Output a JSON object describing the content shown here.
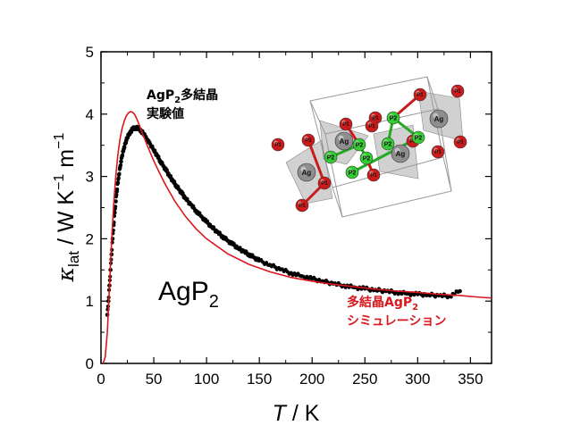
{
  "chart_data": {
    "type": "line",
    "xlabel_var": "T",
    "xlabel_unit": "K",
    "ylabel_var": "κ",
    "ylabel_sub": "lat",
    "ylabel_unit_main": "W K",
    "ylabel_unit_exp1": "−1",
    "ylabel_unit_m": "m",
    "ylabel_unit_exp2": "−1",
    "xlim": [
      0,
      370
    ],
    "ylim": [
      0,
      5
    ],
    "xticks": [
      "0",
      "50",
      "100",
      "150",
      "200",
      "250",
      "300",
      "350"
    ],
    "yticks": [
      "0",
      "1",
      "2",
      "3",
      "4",
      "5"
    ],
    "grid": false,
    "compound_main": "AgP",
    "compound_sub": "2",
    "annotation_experiment": {
      "line1_main": "AgP",
      "line1_sub": "2",
      "line1_tail": "多結晶",
      "line2": "実験値"
    },
    "annotation_simulation": {
      "line1_main": "多結晶AgP",
      "line1_sub": "2",
      "line2": "シミュレーション"
    },
    "series": [
      {
        "kind": "experiment",
        "marker": "dot",
        "color": "#000000",
        "x": [
          6,
          7,
          8,
          9,
          10,
          11,
          12,
          13,
          14,
          15,
          16,
          17,
          18,
          19,
          20,
          21,
          22,
          23,
          24,
          25,
          26,
          27,
          28,
          29,
          30,
          31,
          32,
          33,
          34,
          35,
          36,
          37,
          38,
          39,
          40,
          42,
          44,
          46,
          48,
          50,
          53,
          56,
          59,
          62,
          65,
          68,
          71,
          74,
          77,
          80,
          85,
          90,
          95,
          100,
          105,
          110,
          115,
          120,
          125,
          130,
          135,
          140,
          145,
          150,
          160,
          170,
          180,
          190,
          200,
          210,
          220,
          230,
          240,
          250,
          260,
          270,
          280,
          290,
          300,
          310,
          320,
          330,
          340
        ],
        "y": [
          0.78,
          1.0,
          1.25,
          1.5,
          1.75,
          2.0,
          2.22,
          2.42,
          2.6,
          2.76,
          2.9,
          3.03,
          3.14,
          3.24,
          3.33,
          3.4,
          3.47,
          3.53,
          3.58,
          3.62,
          3.66,
          3.69,
          3.72,
          3.74,
          3.76,
          3.77,
          3.78,
          3.78,
          3.78,
          3.77,
          3.76,
          3.75,
          3.73,
          3.71,
          3.69,
          3.64,
          3.59,
          3.54,
          3.48,
          3.42,
          3.34,
          3.25,
          3.17,
          3.09,
          3.01,
          2.93,
          2.86,
          2.79,
          2.72,
          2.65,
          2.55,
          2.45,
          2.36,
          2.27,
          2.19,
          2.11,
          2.04,
          1.97,
          1.91,
          1.85,
          1.8,
          1.75,
          1.7,
          1.65,
          1.58,
          1.51,
          1.45,
          1.4,
          1.36,
          1.32,
          1.28,
          1.25,
          1.22,
          1.2,
          1.18,
          1.16,
          1.14,
          1.12,
          1.11,
          1.1,
          1.09,
          1.08,
          1.16
        ]
      },
      {
        "kind": "simulation",
        "marker": "line",
        "color": "#d8181e",
        "x": [
          2,
          4,
          6,
          8,
          10,
          12,
          14,
          16,
          18,
          20,
          22,
          24,
          26,
          28,
          30,
          32,
          34,
          36,
          38,
          40,
          45,
          50,
          55,
          60,
          70,
          80,
          90,
          100,
          120,
          140,
          160,
          180,
          200,
          220,
          240,
          260,
          280,
          300,
          320,
          340,
          360,
          370
        ],
        "y": [
          0.0,
          0.1,
          0.5,
          1.2,
          1.95,
          2.55,
          3.0,
          3.35,
          3.6,
          3.77,
          3.89,
          3.97,
          4.02,
          4.04,
          4.03,
          3.99,
          3.92,
          3.84,
          3.75,
          3.66,
          3.45,
          3.25,
          3.07,
          2.9,
          2.6,
          2.36,
          2.16,
          2.0,
          1.76,
          1.59,
          1.47,
          1.38,
          1.32,
          1.27,
          1.23,
          1.19,
          1.16,
          1.14,
          1.11,
          1.09,
          1.06,
          1.05
        ]
      }
    ]
  },
  "inset": {
    "atom_labels_ag": [
      "Ag",
      "Ag",
      "Ag",
      "Ag"
    ],
    "atom_labels_p1": [
      "P1",
      "P1",
      "P1",
      "P1",
      "P1",
      "P1",
      "P1",
      "P1",
      "P1",
      "P1",
      "P1",
      "P1",
      "P1"
    ],
    "atom_labels_p2": [
      "P2",
      "P2",
      "P2",
      "P2",
      "P2",
      "P2",
      "P2"
    ],
    "colors": {
      "ag": "#8e8e8e",
      "p1": "#cc1a1a",
      "p2": "#33cc33",
      "bond_red": "#cc1a1a",
      "bond_green": "#22aa22",
      "polyhedra": "#9a9a9a"
    }
  }
}
